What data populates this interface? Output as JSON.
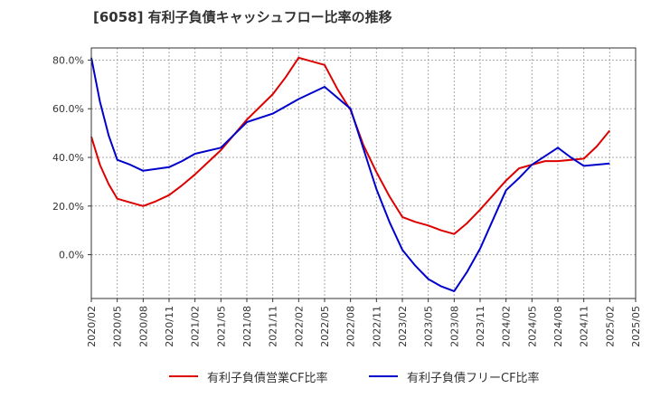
{
  "title": "[6058]  有利子負債キャッシュフロー比率の推移",
  "chart_data": {
    "type": "line",
    "x": [
      "2020/02",
      "2020/05",
      "2020/08",
      "2020/11",
      "2021/02",
      "2021/05",
      "2021/08",
      "2021/11",
      "2022/02",
      "2022/05",
      "2022/08",
      "2022/11",
      "2023/02",
      "2023/05",
      "2023/08",
      "2023/11",
      "2024/02",
      "2024/05",
      "2024/08",
      "2024/11",
      "2025/02",
      "2025/05"
    ],
    "ylim": [
      -18,
      85
    ],
    "yticks": [
      0,
      20,
      40,
      60,
      80
    ],
    "ytick_labels": [
      "0.0%",
      "20.0%",
      "40.0%",
      "60.0%",
      "80.0%"
    ],
    "grid": true,
    "legend_position": "bottom",
    "series": [
      {
        "name": "有利子負債営業CF比率",
        "color": "#dd0000",
        "points": [
          [
            0,
            48.5
          ],
          [
            0.33,
            37
          ],
          [
            0.67,
            29
          ],
          [
            1,
            23
          ],
          [
            1.5,
            21.5
          ],
          [
            2,
            20
          ],
          [
            2.5,
            22
          ],
          [
            3,
            24.5
          ],
          [
            3.5,
            28.5
          ],
          [
            4,
            33
          ],
          [
            4.5,
            38
          ],
          [
            5,
            43
          ],
          [
            6,
            55.5
          ],
          [
            7,
            66
          ],
          [
            7.5,
            73
          ],
          [
            8,
            81
          ],
          [
            9,
            78
          ],
          [
            9.5,
            68
          ],
          [
            10,
            59.5
          ],
          [
            10.5,
            45
          ],
          [
            11,
            34
          ],
          [
            11.5,
            24
          ],
          [
            12,
            15.5
          ],
          [
            12.5,
            13.5
          ],
          [
            13,
            12
          ],
          [
            13.5,
            10
          ],
          [
            14,
            8.5
          ],
          [
            14.5,
            13
          ],
          [
            15,
            18.5
          ],
          [
            16,
            30.5
          ],
          [
            16.5,
            35.5
          ],
          [
            17,
            37
          ],
          [
            17.5,
            38.5
          ],
          [
            18,
            38.5
          ],
          [
            19,
            39.5
          ],
          [
            19.5,
            44.5
          ],
          [
            20,
            51
          ]
        ]
      },
      {
        "name": "有利子負債フリーCF比率",
        "color": "#0000cc",
        "points": [
          [
            0,
            81
          ],
          [
            0.33,
            63
          ],
          [
            0.67,
            49
          ],
          [
            1,
            39
          ],
          [
            1.5,
            37
          ],
          [
            2,
            34.5
          ],
          [
            3,
            36
          ],
          [
            3.5,
            38.5
          ],
          [
            4,
            41.5
          ],
          [
            5,
            44
          ],
          [
            6,
            54.5
          ],
          [
            7,
            58
          ],
          [
            8,
            64
          ],
          [
            9,
            69
          ],
          [
            10,
            60
          ],
          [
            11,
            27
          ],
          [
            11.5,
            13.5
          ],
          [
            12,
            2
          ],
          [
            12.5,
            -4.5
          ],
          [
            13,
            -10
          ],
          [
            13.5,
            -13
          ],
          [
            14,
            -15
          ],
          [
            14.5,
            -7
          ],
          [
            15,
            2.5
          ],
          [
            16,
            26.5
          ],
          [
            16.5,
            31.5
          ],
          [
            17,
            37
          ],
          [
            17.5,
            40.5
          ],
          [
            18,
            44
          ],
          [
            18.5,
            40
          ],
          [
            19,
            36.5
          ],
          [
            20,
            37.5
          ]
        ]
      }
    ]
  }
}
